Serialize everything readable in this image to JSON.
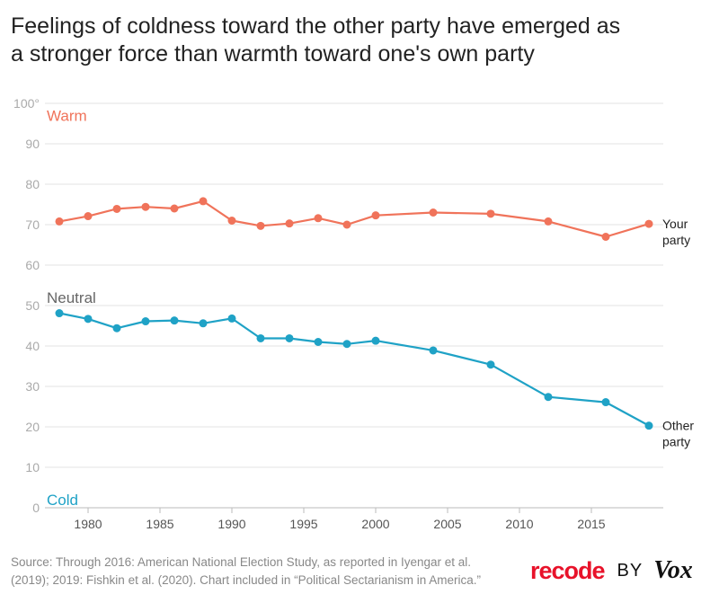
{
  "title_lines": [
    "Feelings of coldness toward the other party have emerged as",
    "a stronger force than warmth toward one's own party"
  ],
  "source_lines": [
    "Source: Through 2016: American National Election Study, as reported in Iyengar et al.",
    "(2019); 2019: Fishkin et al. (2020). Chart included in “Political Sectarianism in America.”"
  ],
  "brand": {
    "recode": "recode",
    "by": "BY",
    "vox": "Vox"
  },
  "colors": {
    "your_party": "#f0735a",
    "other_party": "#1fa2c6",
    "neutral_label": "#666666",
    "grid": "#e3e3e3",
    "axis_text": "#aaaaaa"
  },
  "chart_data": {
    "type": "line",
    "x": [
      1978,
      1980,
      1982,
      1984,
      1986,
      1988,
      1990,
      1992,
      1994,
      1996,
      1998,
      2000,
      2004,
      2008,
      2012,
      2016,
      2019
    ],
    "series": [
      {
        "name": "Your party",
        "label_lines": [
          "Your",
          "party"
        ],
        "color": "#f0735a",
        "values": [
          70.8,
          72.1,
          73.9,
          74.4,
          74.0,
          75.8,
          71.0,
          69.7,
          70.3,
          71.6,
          70.0,
          72.3,
          73.0,
          72.7,
          70.8,
          67.0,
          70.2
        ]
      },
      {
        "name": "Other party",
        "label_lines": [
          "Other",
          "party"
        ],
        "color": "#1fa2c6",
        "values": [
          48.1,
          46.7,
          44.4,
          46.1,
          46.3,
          45.6,
          46.8,
          41.9,
          41.9,
          41.0,
          40.5,
          41.3,
          38.9,
          35.4,
          27.4,
          26.1,
          20.3
        ]
      }
    ],
    "x_ticks": [
      1980,
      1985,
      1990,
      1995,
      2000,
      2005,
      2010,
      2015
    ],
    "y_ticks": [
      0,
      10,
      20,
      30,
      40,
      50,
      60,
      70,
      80,
      90,
      100
    ],
    "y_tick_labels": [
      "0",
      "10",
      "20",
      "30",
      "40",
      "50",
      "60",
      "70",
      "80",
      "90",
      "100°"
    ],
    "xlim": [
      1977,
      2020
    ],
    "ylim": [
      0,
      100
    ],
    "annotations": [
      {
        "text": "Warm",
        "y": 97,
        "color": "#f0735a"
      },
      {
        "text": "Neutral",
        "y": 52,
        "color": "#666666"
      },
      {
        "text": "Cold",
        "y": 2,
        "color": "#1fa2c6"
      }
    ],
    "grid": true,
    "legend": "inline-right"
  }
}
